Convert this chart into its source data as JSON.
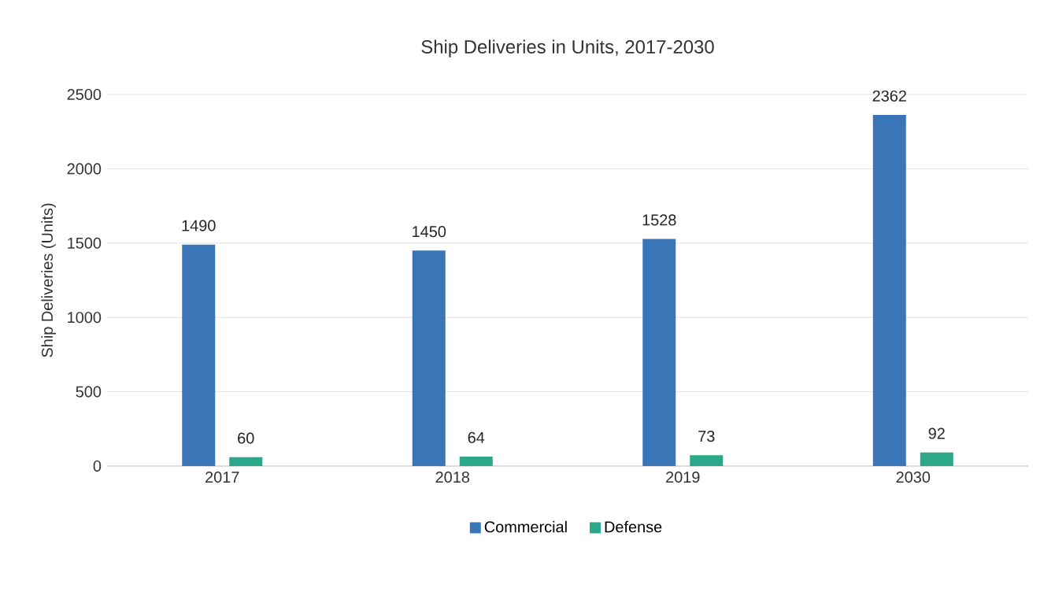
{
  "chart_data": {
    "type": "bar",
    "title": "Ship Deliveries in Units, 2017-2030",
    "ylabel": "Ship Deliveries (Units)",
    "categories": [
      "2017",
      "2018",
      "2019",
      "2030"
    ],
    "series": [
      {
        "name": "Commercial",
        "color": "#3a75b8",
        "values": [
          1490,
          1450,
          1528,
          2362
        ]
      },
      {
        "name": "Defense",
        "color": "#2ba88a",
        "values": [
          60,
          64,
          73,
          92
        ]
      }
    ],
    "ylim": [
      0,
      2500
    ],
    "yticks": [
      0,
      500,
      1000,
      1500,
      2000,
      2500
    ],
    "grid": "y",
    "legend": "bottom",
    "data_labels": true
  }
}
